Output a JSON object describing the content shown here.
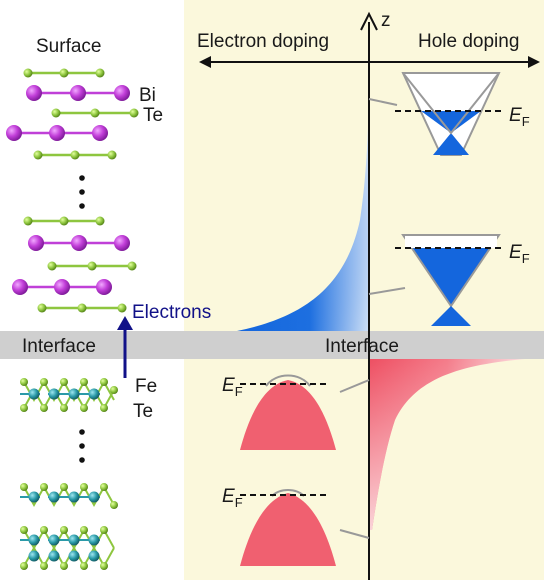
{
  "labels": {
    "surface": "Surface",
    "bi": "Bi",
    "te_top": "Te",
    "electrons": "Electrons",
    "interface_left": "Interface",
    "interface_right": "Interface",
    "fe": "Fe",
    "te_bottom": "Te",
    "electron_doping": "Electron doping",
    "hole_doping": "Hole doping",
    "z_axis": "z",
    "ef_italic": "E",
    "ef_sub": "F"
  },
  "colors": {
    "background_panel": "#fbf8dc",
    "interface_band": "#cfcfcf",
    "bi_atom": "#c040d8",
    "te_atom": "#8ec63f",
    "fe_atom": "#2a9aa8",
    "electron_fill": "#1166dd",
    "hole_fill": "#f06070",
    "arrow_blue": "#111188",
    "cone_outline": "#999999"
  }
}
